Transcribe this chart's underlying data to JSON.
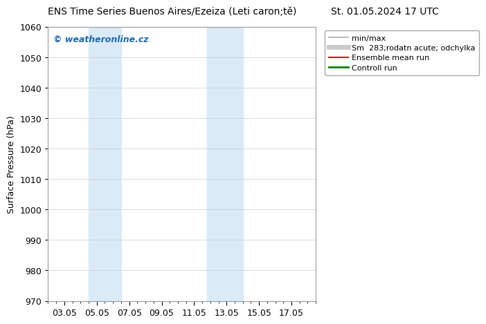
{
  "title_left": "ENS Time Series Buenos Aires/Ezeiza (Leti caron;tě)",
  "title_right": "St. 01.05.2024 17 UTC",
  "ylabel": "Surface Pressure (hPa)",
  "ylim": [
    970,
    1060
  ],
  "yticks": [
    970,
    980,
    990,
    1000,
    1010,
    1020,
    1030,
    1040,
    1050,
    1060
  ],
  "xtick_labels": [
    "03.05",
    "05.05",
    "07.05",
    "09.05",
    "11.05",
    "13.05",
    "15.05",
    "17.05"
  ],
  "xtick_positions": [
    2,
    4,
    6,
    8,
    10,
    12,
    14,
    16
  ],
  "xlim": [
    1.0,
    17.5
  ],
  "shade_bands": [
    {
      "xmin": 3.5,
      "xmax": 5.5
    },
    {
      "xmin": 10.8,
      "xmax": 13.0
    }
  ],
  "shade_color": "#daeaf7",
  "watermark": "© weatheronline.cz",
  "watermark_color": "#1a6bb5",
  "legend_entries": [
    {
      "label": "min/max",
      "color": "#aaaaaa",
      "lw": 1.2,
      "style": "-"
    },
    {
      "label": "Sm  283;rodatn acute; odchylka",
      "color": "#cccccc",
      "lw": 5,
      "style": "-"
    },
    {
      "label": "Ensemble mean run",
      "color": "#ff0000",
      "lw": 1.5,
      "style": "-"
    },
    {
      "label": "Controll run",
      "color": "#008000",
      "lw": 2,
      "style": "-"
    }
  ],
  "bg_color": "#ffffff",
  "grid_color": "#cccccc",
  "title_fontsize": 10,
  "axis_fontsize": 9,
  "tick_fontsize": 9,
  "legend_fontsize": 8
}
